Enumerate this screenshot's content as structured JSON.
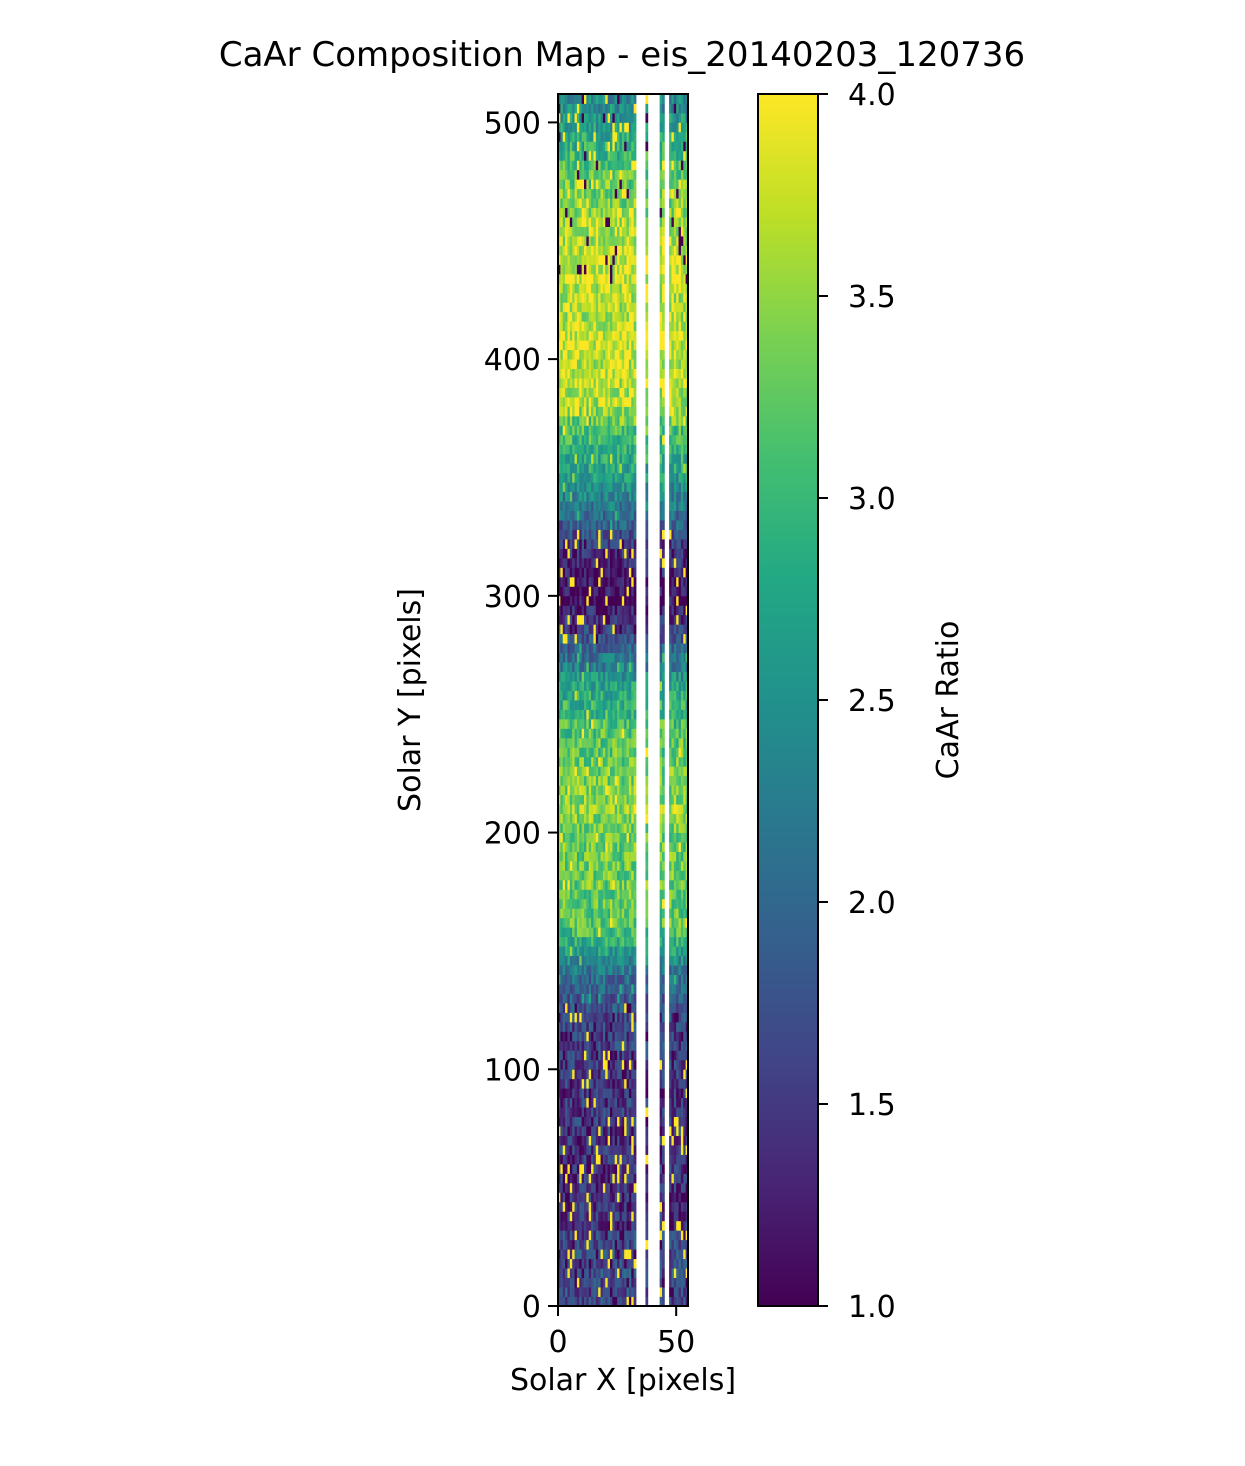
{
  "chart_data": {
    "type": "heatmap",
    "title": "CaAr Composition Map - eis_20140203_120736",
    "xlabel": "Solar X [pixels]",
    "ylabel": "Solar Y [pixels]",
    "xlim": [
      0,
      55
    ],
    "ylim": [
      0,
      512
    ],
    "x_ticks": [
      0,
      50
    ],
    "y_ticks": [
      0,
      100,
      200,
      300,
      400,
      500
    ],
    "colorbar": {
      "label": "CaAr Ratio",
      "range": [
        1.0,
        4.0
      ],
      "ticks": [
        "1.0",
        "1.5",
        "2.0",
        "2.5",
        "3.0",
        "3.5",
        "4.0"
      ],
      "colormap": "viridis"
    },
    "blank_columns": [
      [
        33,
        37
      ],
      [
        38,
        43
      ],
      [
        45,
        47
      ]
    ],
    "mean_ratio_profile": {
      "y": [
        0,
        20,
        40,
        60,
        80,
        100,
        120,
        140,
        160,
        180,
        200,
        210,
        220,
        240,
        260,
        270,
        280,
        290,
        300,
        310,
        320,
        330,
        340,
        350,
        360,
        370,
        380,
        390,
        400,
        410,
        420,
        440,
        460,
        480,
        500,
        512
      ],
      "ratio": [
        1.6,
        1.7,
        1.4,
        1.4,
        1.5,
        1.5,
        1.6,
        2.1,
        3.2,
        3.3,
        3.3,
        3.5,
        3.4,
        3.2,
        2.8,
        2.3,
        1.9,
        1.4,
        1.1,
        1.3,
        1.4,
        1.9,
        2.3,
        2.6,
        2.9,
        3.1,
        3.6,
        3.7,
        3.7,
        3.8,
        3.6,
        3.8,
        3.5,
        3.2,
        2.6,
        2.4
      ]
    }
  }
}
